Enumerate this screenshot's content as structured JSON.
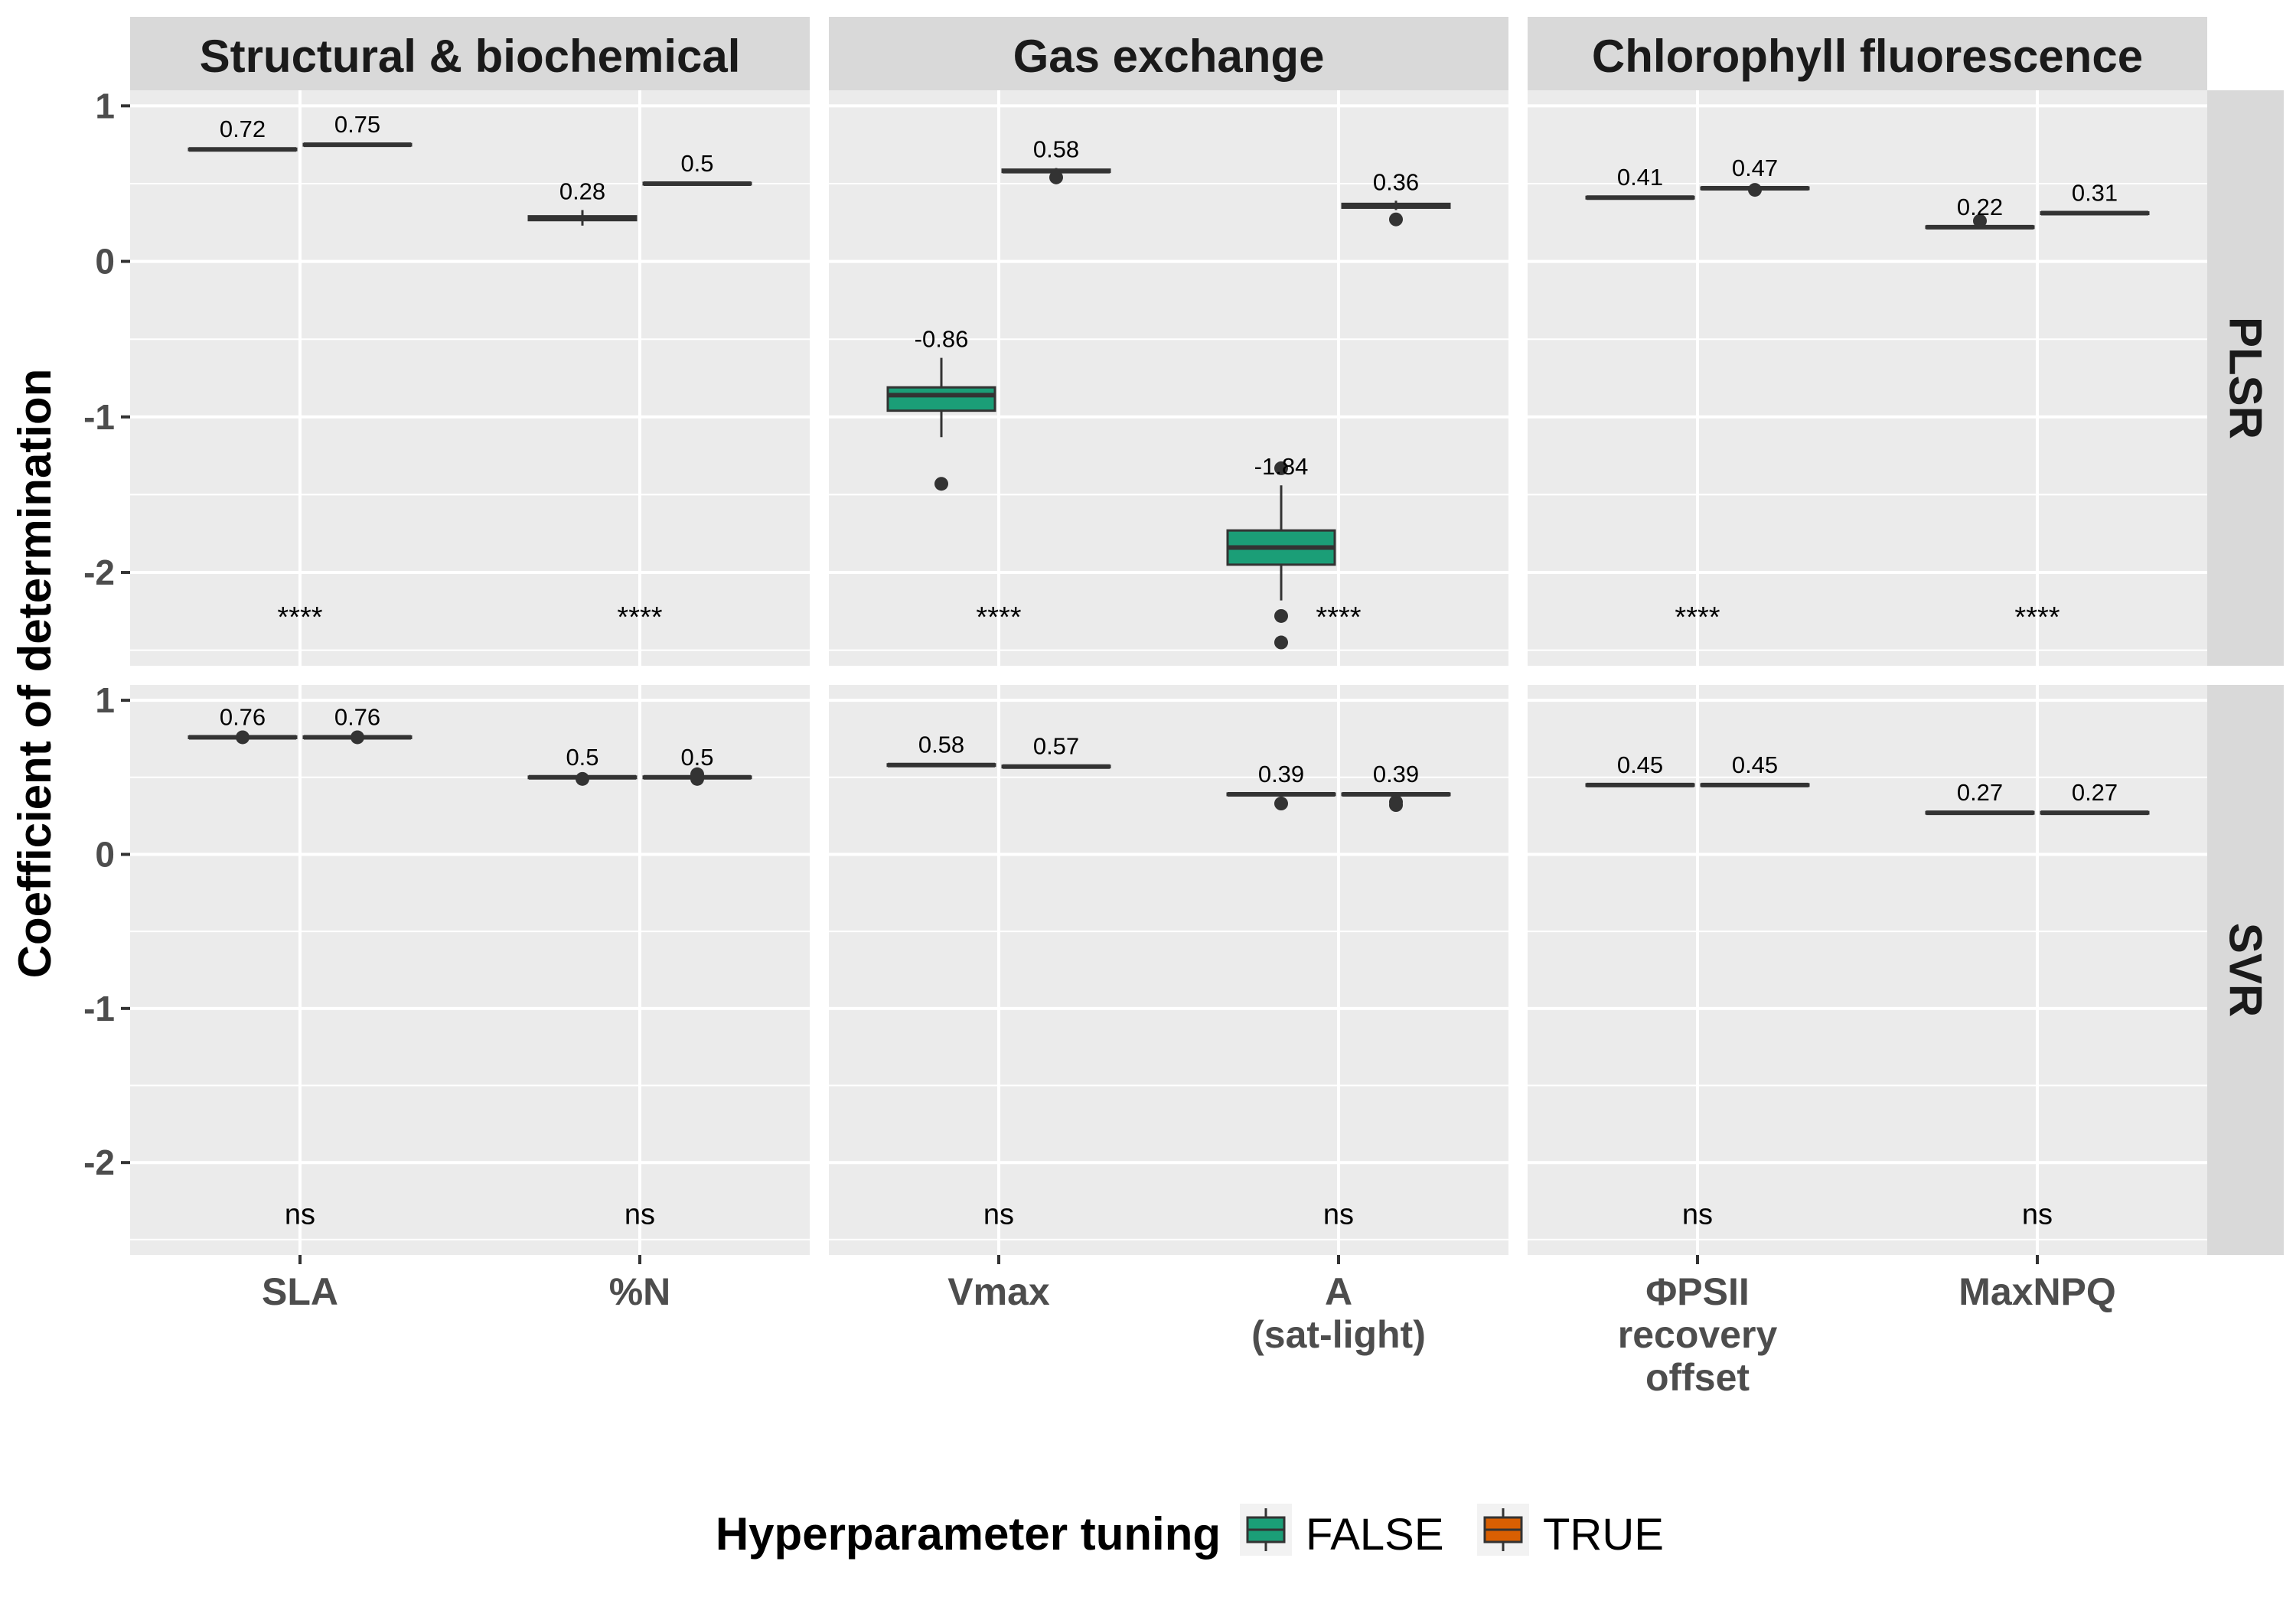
{
  "chart_data": {
    "type": "box",
    "ylabel": "Coefficient of determination",
    "xlabel": "",
    "ylim": [
      -2.6,
      1.1
    ],
    "yticks": [
      "1",
      "0",
      "-1",
      "-2"
    ],
    "ytick_values": [
      1,
      0,
      -1,
      -2
    ],
    "panel_columns": [
      "Structural & biochemical",
      "Gas exchange",
      "Chlorophyll fluorescence"
    ],
    "panel_rows": [
      "PLSR",
      "SVR"
    ],
    "categories": [
      [
        "SLA",
        "%N"
      ],
      [
        "Vmax",
        "A\n(sat-light)"
      ],
      [
        "ΦPSII\nrecovery\noffset",
        "MaxNPQ"
      ]
    ],
    "legend": {
      "title": "Hyperparameter tuning",
      "entries": [
        "FALSE",
        "TRUE"
      ],
      "colors": [
        "#1b9e77",
        "#d95f02"
      ],
      "placement": "bottom"
    },
    "panels": [
      {
        "row": 0,
        "col": 0,
        "groups": [
          {
            "category": 0,
            "significance": "****",
            "boxes": [
              {
                "series": 0,
                "median": 0.72,
                "q1": 0.715,
                "q3": 0.725,
                "whisker_low": 0.71,
                "whisker_high": 0.73,
                "outliers": [],
                "label": "0.72"
              },
              {
                "series": 1,
                "median": 0.75,
                "q1": 0.745,
                "q3": 0.755,
                "whisker_low": 0.74,
                "whisker_high": 0.76,
                "outliers": [],
                "label": "0.75"
              }
            ]
          },
          {
            "category": 1,
            "significance": "****",
            "boxes": [
              {
                "series": 0,
                "median": 0.28,
                "q1": 0.265,
                "q3": 0.29,
                "whisker_low": 0.23,
                "whisker_high": 0.33,
                "outliers": [],
                "label": "0.28"
              },
              {
                "series": 1,
                "median": 0.5,
                "q1": 0.495,
                "q3": 0.505,
                "whisker_low": 0.49,
                "whisker_high": 0.51,
                "outliers": [],
                "label": "0.5"
              }
            ]
          }
        ]
      },
      {
        "row": 0,
        "col": 1,
        "groups": [
          {
            "category": 0,
            "significance": "****",
            "boxes": [
              {
                "series": 0,
                "median": -0.86,
                "q1": -0.96,
                "q3": -0.81,
                "whisker_low": -1.13,
                "whisker_high": -0.62,
                "outliers": [
                  -1.43
                ],
                "label": "-0.86"
              },
              {
                "series": 1,
                "median": 0.58,
                "q1": 0.575,
                "q3": 0.59,
                "whisker_low": 0.57,
                "whisker_high": 0.6,
                "outliers": [
                  0.54
                ],
                "label": "0.58"
              }
            ]
          },
          {
            "category": 1,
            "significance": "****",
            "boxes": [
              {
                "series": 0,
                "median": -1.84,
                "q1": -1.95,
                "q3": -1.73,
                "whisker_low": -2.18,
                "whisker_high": -1.44,
                "outliers": [
                  -1.33,
                  -2.28,
                  -2.45
                ],
                "label": "-1.84"
              },
              {
                "series": 1,
                "median": 0.36,
                "q1": 0.345,
                "q3": 0.37,
                "whisker_low": 0.33,
                "whisker_high": 0.39,
                "outliers": [
                  0.27
                ],
                "label": "0.36"
              }
            ]
          }
        ]
      },
      {
        "row": 0,
        "col": 2,
        "groups": [
          {
            "category": 0,
            "significance": "****",
            "boxes": [
              {
                "series": 0,
                "median": 0.41,
                "q1": 0.405,
                "q3": 0.415,
                "whisker_low": 0.4,
                "whisker_high": 0.42,
                "outliers": [],
                "label": "0.41"
              },
              {
                "series": 1,
                "median": 0.47,
                "q1": 0.465,
                "q3": 0.475,
                "whisker_low": 0.46,
                "whisker_high": 0.48,
                "outliers": [
                  0.46
                ],
                "label": "0.47"
              }
            ]
          },
          {
            "category": 1,
            "significance": "****",
            "boxes": [
              {
                "series": 0,
                "median": 0.22,
                "q1": 0.215,
                "q3": 0.225,
                "whisker_low": 0.21,
                "whisker_high": 0.23,
                "outliers": [
                  0.26
                ],
                "label": "0.22"
              },
              {
                "series": 1,
                "median": 0.31,
                "q1": 0.305,
                "q3": 0.315,
                "whisker_low": 0.3,
                "whisker_high": 0.32,
                "outliers": [],
                "label": "0.31"
              }
            ]
          }
        ]
      },
      {
        "row": 1,
        "col": 0,
        "groups": [
          {
            "category": 0,
            "significance": "ns",
            "boxes": [
              {
                "series": 0,
                "median": 0.76,
                "q1": 0.755,
                "q3": 0.765,
                "whisker_low": 0.75,
                "whisker_high": 0.77,
                "outliers": [
                  0.76
                ],
                "label": "0.76"
              },
              {
                "series": 1,
                "median": 0.76,
                "q1": 0.755,
                "q3": 0.765,
                "whisker_low": 0.75,
                "whisker_high": 0.77,
                "outliers": [
                  0.76
                ],
                "label": "0.76"
              }
            ]
          },
          {
            "category": 1,
            "significance": "ns",
            "boxes": [
              {
                "series": 0,
                "median": 0.5,
                "q1": 0.495,
                "q3": 0.505,
                "whisker_low": 0.49,
                "whisker_high": 0.51,
                "outliers": [
                  0.49
                ],
                "label": "0.5"
              },
              {
                "series": 1,
                "median": 0.5,
                "q1": 0.495,
                "q3": 0.505,
                "whisker_low": 0.49,
                "whisker_high": 0.51,
                "outliers": [
                  0.49,
                  0.52
                ],
                "label": "0.5"
              }
            ]
          }
        ]
      },
      {
        "row": 1,
        "col": 1,
        "groups": [
          {
            "category": 0,
            "significance": "ns",
            "boxes": [
              {
                "series": 0,
                "median": 0.58,
                "q1": 0.575,
                "q3": 0.585,
                "whisker_low": 0.57,
                "whisker_high": 0.59,
                "outliers": [],
                "label": "0.58"
              },
              {
                "series": 1,
                "median": 0.57,
                "q1": 0.565,
                "q3": 0.575,
                "whisker_low": 0.56,
                "whisker_high": 0.58,
                "outliers": [],
                "label": "0.57"
              }
            ]
          },
          {
            "category": 1,
            "significance": "ns",
            "boxes": [
              {
                "series": 0,
                "median": 0.39,
                "q1": 0.385,
                "q3": 0.395,
                "whisker_low": 0.38,
                "whisker_high": 0.4,
                "outliers": [
                  0.33
                ],
                "label": "0.39"
              },
              {
                "series": 1,
                "median": 0.39,
                "q1": 0.385,
                "q3": 0.395,
                "whisker_low": 0.38,
                "whisker_high": 0.4,
                "outliers": [
                  0.32,
                  0.34
                ],
                "label": "0.39"
              }
            ]
          }
        ]
      },
      {
        "row": 1,
        "col": 2,
        "groups": [
          {
            "category": 0,
            "significance": "ns",
            "boxes": [
              {
                "series": 0,
                "median": 0.45,
                "q1": 0.445,
                "q3": 0.455,
                "whisker_low": 0.44,
                "whisker_high": 0.46,
                "outliers": [],
                "label": "0.45"
              },
              {
                "series": 1,
                "median": 0.45,
                "q1": 0.445,
                "q3": 0.455,
                "whisker_low": 0.44,
                "whisker_high": 0.46,
                "outliers": [],
                "label": "0.45"
              }
            ]
          },
          {
            "category": 1,
            "significance": "ns",
            "boxes": [
              {
                "series": 0,
                "median": 0.27,
                "q1": 0.265,
                "q3": 0.275,
                "whisker_low": 0.26,
                "whisker_high": 0.28,
                "outliers": [],
                "label": "0.27"
              },
              {
                "series": 1,
                "median": 0.27,
                "q1": 0.265,
                "q3": 0.275,
                "whisker_low": 0.26,
                "whisker_high": 0.28,
                "outliers": [],
                "label": "0.27"
              }
            ]
          }
        ]
      }
    ]
  }
}
